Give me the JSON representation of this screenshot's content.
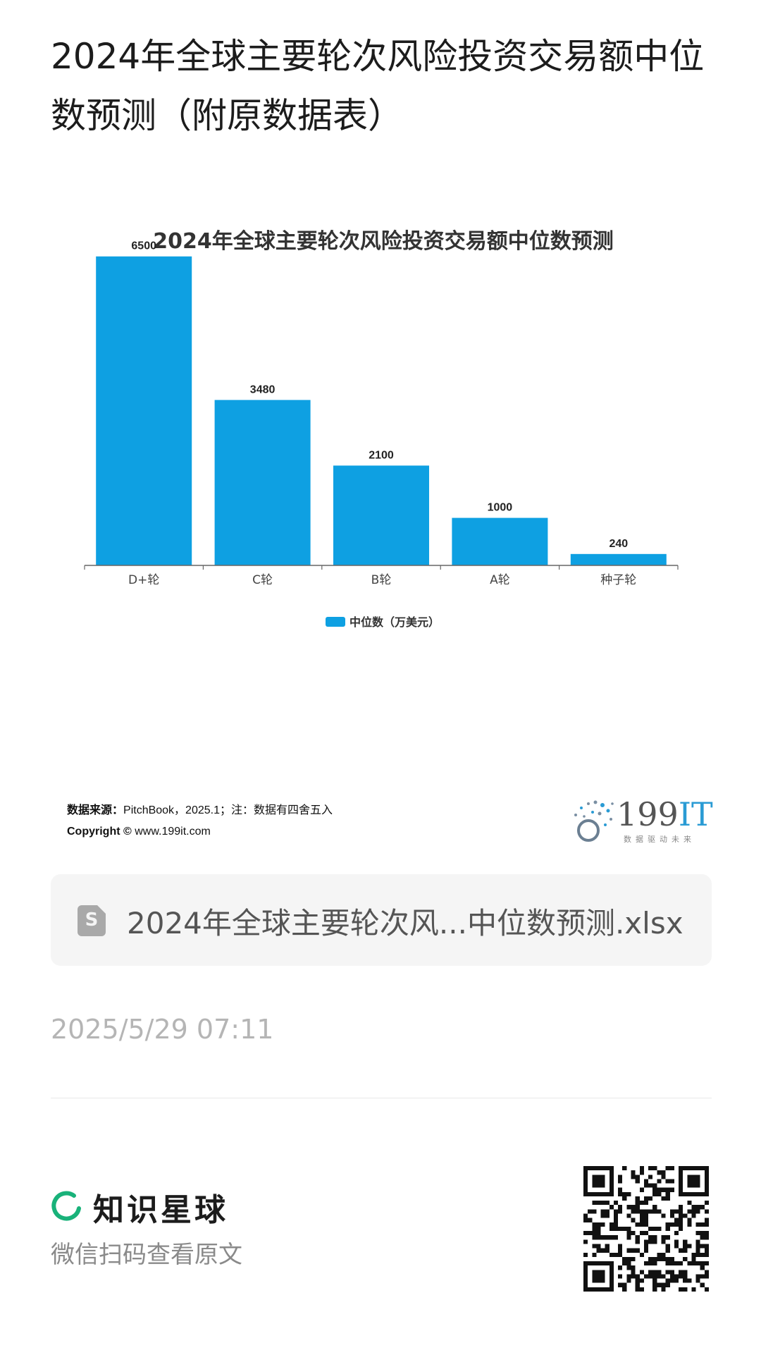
{
  "page": {
    "title": "2024年全球主要轮次风险投资交易额中位数预测（附原数据表）"
  },
  "chart_data": {
    "type": "bar",
    "title": "2024年全球主要轮次风险投资交易额中位数预测",
    "categories": [
      "D+轮",
      "C轮",
      "B轮",
      "A轮",
      "种子轮"
    ],
    "series": [
      {
        "name": "中位数（万美元）",
        "values": [
          6500,
          3480,
          2100,
          1000,
          240
        ]
      }
    ],
    "data_labels": [
      "6500",
      "3480",
      "2100",
      "1000",
      "240"
    ],
    "ylim": [
      0,
      7000
    ],
    "grid": false,
    "legend": "bottom",
    "bar_color": "#0ea0e2"
  },
  "source": {
    "label": "数据来源：",
    "text": "PitchBook，2025.1；注：数据有四舍五入",
    "copyright_label": "Copyright ©",
    "copyright_site": "www.199it.com"
  },
  "logo": {
    "text": "199",
    "text_accent": "IT",
    "tagline": "数据驱动未来"
  },
  "file": {
    "icon": "spreadsheet-icon",
    "icon_letter": "S",
    "name": "2024年全球主要轮次风...中位数预测.xlsx"
  },
  "timestamp": "2025/5/29 07:11",
  "footer": {
    "brand_name": "知识星球",
    "subtitle": "微信扫码查看原文",
    "brand_color": "#19b27a"
  }
}
